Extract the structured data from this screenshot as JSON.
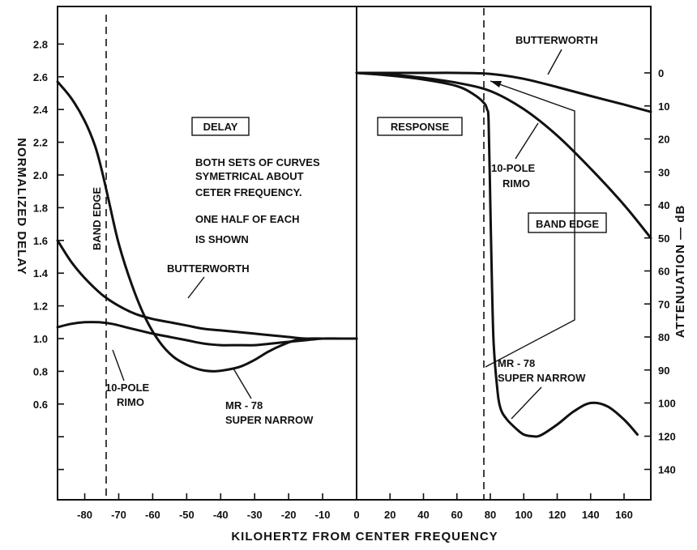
{
  "chart_data": [
    {
      "type": "line",
      "panel": "left",
      "box_label": "DELAY",
      "ylabel": "NORMALIZED DELAY",
      "xlabel": "KILOHERTZ FROM CENTER FREQUENCY",
      "xlim": [
        -88,
        0
      ],
      "ylim": [
        0.15,
        2.95
      ],
      "x_ticks": [
        -80,
        -70,
        -60,
        -50,
        -40,
        -30,
        -20,
        -10,
        0
      ],
      "y_ticks": [
        "2.8",
        "2.6",
        "2.4",
        "2.2",
        "2.0",
        "1.8",
        "1.6",
        "1.4",
        "1.2",
        "1.0",
        "0.8",
        "0.6"
      ],
      "band_edge_x": -75,
      "band_edge_label": "BAND EDGE",
      "series": [
        {
          "name": "MR - 78 SUPER NARROW",
          "x": [
            -88,
            -84,
            -80,
            -77,
            -75,
            -73,
            -70,
            -66,
            -62,
            -58,
            -54,
            -50,
            -46,
            -42,
            -38,
            -34,
            -30,
            -26,
            -22,
            -18,
            -14,
            -10,
            -6,
            -2,
            0
          ],
          "y": [
            2.57,
            2.47,
            2.33,
            2.18,
            2.03,
            1.85,
            1.58,
            1.32,
            1.12,
            0.98,
            0.89,
            0.84,
            0.81,
            0.8,
            0.81,
            0.83,
            0.87,
            0.92,
            0.96,
            0.99,
            1.0,
            1.0,
            1.0,
            1.0,
            1.0
          ]
        },
        {
          "name": "BUTTERWORTH",
          "x": [
            -88,
            -84,
            -80,
            -75,
            -70,
            -65,
            -60,
            -55,
            -50,
            -45,
            -40,
            -35,
            -30,
            -25,
            -20,
            -15,
            -10,
            -5,
            0
          ],
          "y": [
            1.6,
            1.47,
            1.37,
            1.27,
            1.2,
            1.15,
            1.12,
            1.1,
            1.08,
            1.06,
            1.05,
            1.04,
            1.03,
            1.02,
            1.01,
            1.0,
            1.0,
            1.0,
            1.0
          ]
        },
        {
          "name": "10-POLE RIMO",
          "x": [
            -88,
            -84,
            -80,
            -76,
            -72,
            -68,
            -64,
            -60,
            -55,
            -50,
            -45,
            -40,
            -35,
            -30,
            -25,
            -20,
            -15,
            -10,
            -5,
            0
          ],
          "y": [
            1.07,
            1.09,
            1.1,
            1.1,
            1.09,
            1.07,
            1.05,
            1.03,
            1.01,
            0.99,
            0.97,
            0.96,
            0.96,
            0.96,
            0.97,
            0.98,
            0.99,
            1.0,
            1.0,
            1.0
          ]
        }
      ],
      "annotations": {
        "note_1": "BOTH SETS OF CURVES",
        "note_2": "SYMETRICAL ABOUT",
        "note_3": "CETER FREQUENCY.",
        "note_4": "ONE HALF OF EACH",
        "note_5": "IS SHOWN",
        "butterworth": "BUTTERWORTH",
        "rimo_1": "10-POLE",
        "rimo_2": "RIMO",
        "mr78_1": "MR - 78",
        "mr78_2": "SUPER NARROW"
      }
    },
    {
      "type": "line",
      "panel": "right",
      "box_label": "RESPONSE",
      "ylabel": "ATTENUATION — dB",
      "xlim": [
        0,
        176
      ],
      "ylim_db": [
        0,
        140
      ],
      "x_ticks": [
        0,
        20,
        40,
        60,
        80,
        100,
        120,
        140,
        160
      ],
      "y_ticks": [
        "0",
        "10",
        "20",
        "30",
        "40",
        "50",
        "60",
        "70",
        "80",
        "90",
        "100",
        "120",
        "140"
      ],
      "band_edge_x": 80,
      "band_edge_label": "BAND EDGE",
      "series": [
        {
          "name": "BUTTERWORTH",
          "x": [
            0,
            20,
            40,
            60,
            80,
            100,
            120,
            140,
            160,
            176
          ],
          "y": [
            0,
            0,
            0,
            0,
            0.3,
            1.8,
            4.3,
            7,
            9.6,
            11.8
          ]
        },
        {
          "name": "10-POLE RIMO",
          "x": [
            0,
            20,
            40,
            60,
            80,
            100,
            120,
            140,
            160,
            176
          ],
          "y": [
            0,
            0.5,
            1.5,
            3,
            5.5,
            11,
            19,
            29,
            40,
            50
          ]
        },
        {
          "name": "MR - 78 SUPER NARROW",
          "x": [
            0,
            20,
            40,
            60,
            70,
            76,
            78,
            79,
            80,
            81,
            82,
            84,
            86,
            90,
            96,
            100,
            105,
            110,
            120,
            130,
            140,
            150,
            160,
            168
          ],
          "y": [
            0,
            0.8,
            2,
            4,
            6.5,
            9,
            11,
            15,
            40,
            65,
            82,
            95,
            103,
            110,
            116,
            119,
            120,
            119.5,
            113,
            105,
            100,
            102,
            110,
            119
          ]
        }
      ],
      "annotations": {
        "butterworth": "BUTTERWORTH",
        "rimo_1": "10-POLE",
        "rimo_2": "RIMO",
        "mr78_1": "MR - 78",
        "mr78_2": "SUPER NARROW"
      }
    }
  ]
}
